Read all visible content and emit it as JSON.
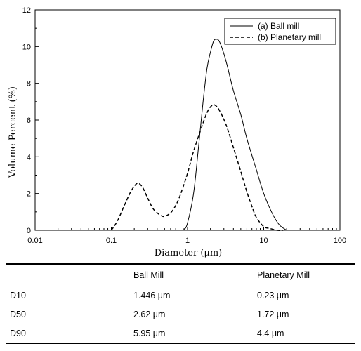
{
  "chart_data": {
    "type": "line",
    "xlabel": "Diameter (μm)",
    "ylabel": "Volume Percent (%)",
    "xscale": "log",
    "xlim": [
      0.01,
      100
    ],
    "ylim": [
      0,
      12
    ],
    "xticks": [
      0.01,
      0.1,
      1,
      10,
      100
    ],
    "xtick_labels": [
      "0.01",
      "0.1",
      "1",
      "10",
      "100"
    ],
    "yticks": [
      0,
      2,
      4,
      6,
      8,
      10,
      12
    ],
    "ytick_labels": [
      "0",
      "2",
      "4",
      "6",
      "8",
      "10",
      "12"
    ],
    "legend_position": "top-right",
    "series": [
      {
        "name": "(a) Ball mill",
        "style": "solid",
        "x": [
          0.8,
          0.9,
          1.0,
          1.2,
          1.4,
          1.6,
          1.8,
          2.0,
          2.2,
          2.4,
          2.6,
          2.9,
          3.3,
          4.0,
          5.0,
          6.0,
          8.0,
          10.0,
          13.0,
          16.0,
          20.0
        ],
        "y": [
          0.0,
          0.05,
          0.4,
          2.0,
          4.6,
          7.0,
          8.8,
          9.7,
          10.3,
          10.4,
          10.3,
          9.8,
          9.0,
          7.6,
          6.3,
          5.0,
          3.3,
          2.0,
          0.9,
          0.3,
          0.0
        ]
      },
      {
        "name": "(b) Planetary mill",
        "style": "dashed",
        "x": [
          0.1,
          0.12,
          0.15,
          0.18,
          0.21,
          0.23,
          0.26,
          0.3,
          0.35,
          0.4,
          0.45,
          0.5,
          0.6,
          0.7,
          0.8,
          1.0,
          1.2,
          1.5,
          1.8,
          2.1,
          2.4,
          2.8,
          3.3,
          4.0,
          5.0,
          6.0,
          7.0,
          8.0,
          10.0,
          12.0,
          15.0,
          18.0
        ],
        "y": [
          0.0,
          0.5,
          1.4,
          2.1,
          2.5,
          2.55,
          2.3,
          1.75,
          1.2,
          0.95,
          0.8,
          0.75,
          0.95,
          1.35,
          1.9,
          3.1,
          4.3,
          5.5,
          6.4,
          6.8,
          6.75,
          6.3,
          5.6,
          4.5,
          3.2,
          2.1,
          1.3,
          0.7,
          0.2,
          0.1,
          0.0,
          0.0
        ]
      }
    ]
  },
  "table": {
    "headers": [
      "",
      "Ball Mill",
      "Planetary Mill"
    ],
    "rows": [
      {
        "label": "D10",
        "ball": "1.446 μm",
        "planetary": "0.23  μm"
      },
      {
        "label": "D50",
        "ball": "2.62 μm",
        "planetary": "1.72  μm"
      },
      {
        "label": "D90",
        "ball": "5.95 μm",
        "planetary": "4.4  μm"
      }
    ]
  }
}
